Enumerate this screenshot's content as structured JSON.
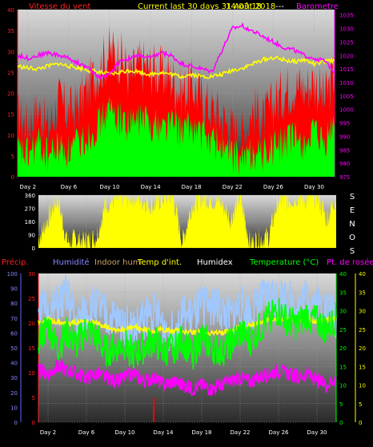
{
  "header": {
    "left_label": "Vitesse du vent",
    "center_label": "Current last 30 days 31 Août 2018",
    "center_overlay": "14:03:18",
    "separator": "---",
    "right_label": "Barometre"
  },
  "vane_side": {
    "letters": [
      "S",
      "E",
      "N",
      "O",
      "S"
    ]
  },
  "lower_header": {
    "precip": "Précip.",
    "humidite": "Humidité",
    "indoor_hum": "Indoor hum",
    "temp_int": "Temp d'int.",
    "humidex": "Humidex",
    "temperature": "Temperature (°C)",
    "dewpoint": "Pt. de rosée"
  },
  "colors": {
    "wind_gust": "#ff0000",
    "wind_avg": "#00ff00",
    "baro": "#ff00ff",
    "temp_int": "#ffff00",
    "humidity": "#a0c8ff",
    "temperature": "#00ff00",
    "dewpoint": "#ff00ff",
    "rain": "#ff0000",
    "grid": "#a0a0a0"
  },
  "x_axis": {
    "ticks": [
      "Day 2",
      "Day 6",
      "Day 10",
      "Day 14",
      "Day 18",
      "Day 22",
      "Day 26",
      "Day 30"
    ],
    "tick_days": [
      2,
      6,
      10,
      14,
      18,
      22,
      26,
      30
    ],
    "range": [
      1,
      32
    ]
  },
  "chart_data": [
    {
      "type": "line",
      "name": "wind-baro",
      "x_range": [
        1,
        32
      ],
      "left_axis": {
        "ticks": [
          0,
          5,
          10,
          15,
          20,
          25,
          30,
          35,
          40
        ],
        "range": [
          0,
          40
        ]
      },
      "right_axis": {
        "ticks": [
          975,
          980,
          985,
          990,
          995,
          1000,
          1005,
          1010,
          1015,
          1020,
          1025,
          1030,
          1035
        ],
        "range": [
          975,
          1037
        ]
      },
      "series": [
        {
          "key": "gust",
          "axis": "left",
          "style": "fill",
          "x": [
            1,
            2,
            3,
            4,
            5,
            6,
            7,
            8,
            9,
            10,
            11,
            12,
            13,
            14,
            15,
            16,
            17,
            18,
            19,
            20,
            21,
            22,
            23,
            24,
            25,
            26,
            27,
            28,
            29,
            30,
            31,
            32
          ],
          "y": [
            14,
            12,
            16,
            11,
            18,
            15,
            17,
            22,
            26,
            30,
            29,
            24,
            27,
            26,
            25,
            24,
            20,
            22,
            19,
            16,
            14,
            11,
            10,
            16,
            13,
            17,
            20,
            22,
            21,
            23,
            18,
            25
          ]
        },
        {
          "key": "avg",
          "axis": "left",
          "style": "fill",
          "x": [
            1,
            2,
            3,
            4,
            5,
            6,
            7,
            8,
            9,
            10,
            11,
            12,
            13,
            14,
            15,
            16,
            17,
            18,
            19,
            20,
            21,
            22,
            23,
            24,
            25,
            26,
            27,
            28,
            29,
            30,
            31,
            32
          ],
          "y": [
            6,
            5,
            8,
            5,
            7,
            6,
            8,
            10,
            13,
            16,
            14,
            12,
            14,
            13,
            12,
            13,
            11,
            12,
            10,
            9,
            7,
            5,
            4,
            6,
            5,
            7,
            8,
            9,
            8,
            10,
            7,
            13
          ]
        },
        {
          "key": "temp_int",
          "axis": "left",
          "style": "line",
          "x": [
            1,
            2,
            3,
            4,
            5,
            6,
            7,
            8,
            9,
            10,
            11,
            12,
            13,
            14,
            15,
            16,
            17,
            18,
            19,
            20,
            21,
            22,
            23,
            24,
            25,
            26,
            27,
            28,
            29,
            30,
            31,
            32
          ],
          "y": [
            26.5,
            26,
            25.8,
            26.5,
            27,
            26.5,
            26,
            25.5,
            25,
            24.5,
            25,
            25.5,
            25,
            24.5,
            25,
            24.5,
            24,
            24.5,
            24,
            24,
            24.5,
            25.5,
            26,
            27,
            28,
            28.5,
            28,
            27.5,
            28,
            27,
            27.5,
            28
          ]
        },
        {
          "key": "baro",
          "axis": "right",
          "style": "line",
          "x": [
            1,
            2,
            3,
            4,
            5,
            6,
            7,
            8,
            9,
            10,
            11,
            12,
            13,
            14,
            15,
            16,
            17,
            18,
            19,
            20,
            21,
            22,
            23,
            24,
            25,
            26,
            27,
            28,
            29,
            30,
            31,
            32
          ],
          "y": [
            1020,
            1019,
            1020,
            1021,
            1020,
            1019,
            1017,
            1015,
            1012,
            1013,
            1018,
            1019,
            1020,
            1019,
            1021,
            1020,
            1017,
            1016,
            1015,
            1014,
            1022,
            1030,
            1031,
            1029,
            1027,
            1025,
            1023,
            1022,
            1020,
            1019,
            1018,
            1014
          ]
        }
      ]
    },
    {
      "type": "line",
      "name": "wind-direction",
      "x_range": [
        1,
        32
      ],
      "left_axis": {
        "ticks": [
          0,
          90,
          180,
          270,
          360
        ],
        "range": [
          0,
          360
        ]
      },
      "series": [
        {
          "key": "direction",
          "axis": "left",
          "style": "fill",
          "x": [
            1,
            2,
            3,
            4,
            5,
            6,
            7,
            8,
            9,
            10,
            11,
            12,
            13,
            14,
            15,
            16,
            17,
            18,
            19,
            20,
            21,
            22,
            23,
            24,
            25,
            26,
            27,
            28,
            29,
            30,
            31,
            32
          ],
          "y": [
            60,
            200,
            340,
            40,
            60,
            50,
            70,
            300,
            330,
            340,
            350,
            320,
            290,
            340,
            350,
            40,
            300,
            340,
            330,
            310,
            200,
            350,
            40,
            60,
            80,
            340,
            320,
            350,
            330,
            360,
            200,
            350
          ]
        }
      ]
    },
    {
      "type": "line",
      "name": "temp-hum-rain",
      "x_range": [
        1,
        32
      ],
      "axes": [
        {
          "id": "hum",
          "ticks": [
            0,
            10,
            20,
            30,
            40,
            50,
            60,
            70,
            80,
            90,
            100
          ],
          "range": [
            0,
            100
          ]
        },
        {
          "id": "rain",
          "ticks": [
            0,
            5,
            10,
            15,
            20,
            25,
            30
          ],
          "range": [
            0,
            30
          ]
        },
        {
          "id": "temp",
          "ticks": [
            0,
            5,
            10,
            15,
            20,
            25,
            30,
            35,
            40
          ],
          "range": [
            0,
            40
          ]
        },
        {
          "id": "temp2",
          "ticks": [
            0,
            5,
            10,
            15,
            20,
            25,
            30,
            35,
            40
          ],
          "range": [
            0,
            40
          ]
        }
      ],
      "series": [
        {
          "key": "humidity",
          "axis": "hum",
          "style": "line",
          "x": [
            1,
            2,
            3,
            4,
            5,
            6,
            7,
            8,
            9,
            10,
            11,
            12,
            13,
            14,
            15,
            16,
            17,
            18,
            19,
            20,
            21,
            22,
            23,
            24,
            25,
            26,
            27,
            28,
            29,
            30,
            31,
            32
          ],
          "y": [
            82,
            70,
            78,
            85,
            65,
            74,
            80,
            70,
            68,
            66,
            62,
            70,
            75,
            65,
            60,
            72,
            70,
            78,
            80,
            75,
            70,
            78,
            74,
            80,
            84,
            86,
            82,
            78,
            84,
            80,
            76,
            70
          ]
        },
        {
          "key": "temp_int",
          "axis": "temp",
          "style": "line",
          "x": [
            1,
            2,
            3,
            4,
            5,
            6,
            7,
            8,
            9,
            10,
            11,
            12,
            13,
            14,
            15,
            16,
            17,
            18,
            19,
            20,
            21,
            22,
            23,
            24,
            25,
            26,
            27,
            28,
            29,
            30,
            31,
            32
          ],
          "y": [
            27,
            27.5,
            27,
            26.5,
            27,
            27,
            26.5,
            26,
            25,
            25,
            25.5,
            25,
            24.5,
            25,
            24.5,
            24.5,
            24,
            24.5,
            24,
            24,
            24.5,
            25.5,
            26,
            27,
            27.5,
            28,
            27.5,
            27.5,
            28,
            27,
            27.5,
            28
          ]
        },
        {
          "key": "temperature",
          "axis": "temp",
          "style": "line",
          "x": [
            1,
            2,
            3,
            4,
            5,
            6,
            7,
            8,
            9,
            10,
            11,
            12,
            13,
            14,
            15,
            16,
            17,
            18,
            19,
            20,
            21,
            22,
            23,
            24,
            25,
            26,
            27,
            28,
            29,
            30,
            31,
            32
          ],
          "y": [
            22,
            26,
            20,
            24,
            21,
            25,
            23,
            19,
            20,
            21,
            18,
            20,
            22,
            19,
            20,
            22,
            18,
            23,
            20,
            19,
            21,
            24,
            22,
            25,
            28,
            30,
            27,
            26,
            29,
            27,
            25,
            28
          ]
        },
        {
          "key": "dewpoint",
          "axis": "temp",
          "style": "line",
          "x": [
            1,
            2,
            3,
            4,
            5,
            6,
            7,
            8,
            9,
            10,
            11,
            12,
            13,
            14,
            15,
            16,
            17,
            18,
            19,
            20,
            21,
            22,
            23,
            24,
            25,
            26,
            27,
            28,
            29,
            30,
            31,
            32
          ],
          "y": [
            14,
            13,
            15,
            14,
            13,
            12,
            13,
            12,
            11,
            12,
            13,
            11,
            12,
            10,
            11,
            10,
            9,
            10,
            9,
            10,
            11,
            12,
            11,
            12,
            13,
            14,
            13,
            12,
            13,
            11,
            10,
            12
          ]
        },
        {
          "key": "rain",
          "axis": "rain",
          "style": "bar",
          "x": [
            13
          ],
          "y": [
            5
          ]
        }
      ]
    }
  ]
}
